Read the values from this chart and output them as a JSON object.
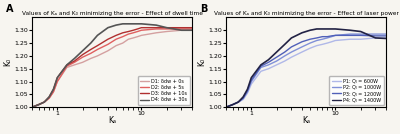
{
  "title_A": "Values of Kₐ and K₀ minimizing the error - Effect of dwell time",
  "title_B": "Values of Kₐ and K₀ minimizing the error - Effect of laser power",
  "xlabel": "Kₐ",
  "ylabel_A": "K₀",
  "ylabel_B": "K₀",
  "panel_A": "A",
  "panel_B": "B",
  "x_log": [
    0.5,
    0.6,
    0.7,
    0.8,
    0.9,
    1.0,
    1.3,
    1.6,
    2.0,
    2.5,
    3.0,
    4.0,
    5.0,
    6.0,
    7.0,
    8.0,
    9.0,
    10.0,
    15.0,
    20.0,
    30.0,
    40.0
  ],
  "legend_A": [
    "D1: δdw + 0s",
    "D2: δdw + 5s",
    "D3: δdw + 10s",
    "D4: δdw + 30s"
  ],
  "legend_B": [
    "P1: Qₗ = 600W",
    "P2: Qₗ = 1000W",
    "P3: Qₗ = 1200W",
    "P4: Qₗ = 1400W"
  ],
  "colors_A": [
    "#d4a0a0",
    "#e06060",
    "#b03030",
    "#555555"
  ],
  "colors_B": [
    "#b0b8e8",
    "#8090d8",
    "#5060b8",
    "#222244"
  ],
  "lw_A": [
    1.0,
    1.0,
    1.0,
    1.2
  ],
  "lw_B": [
    1.0,
    1.0,
    1.0,
    1.2
  ],
  "background": "#f7f5f0",
  "y_D1": [
    1.0,
    1.01,
    1.02,
    1.035,
    1.06,
    1.1,
    1.155,
    1.165,
    1.175,
    1.19,
    1.2,
    1.22,
    1.24,
    1.25,
    1.265,
    1.27,
    1.275,
    1.28,
    1.29,
    1.295,
    1.3,
    1.3
  ],
  "y_D2": [
    1.0,
    1.01,
    1.02,
    1.035,
    1.06,
    1.1,
    1.16,
    1.175,
    1.195,
    1.21,
    1.225,
    1.245,
    1.265,
    1.275,
    1.285,
    1.29,
    1.295,
    1.3,
    1.305,
    1.305,
    1.305,
    1.305
  ],
  "y_D3": [
    1.0,
    1.01,
    1.02,
    1.04,
    1.07,
    1.115,
    1.165,
    1.18,
    1.205,
    1.225,
    1.24,
    1.265,
    1.28,
    1.29,
    1.295,
    1.3,
    1.305,
    1.31,
    1.31,
    1.31,
    1.31,
    1.31
  ],
  "y_D4": [
    1.0,
    1.01,
    1.02,
    1.04,
    1.07,
    1.115,
    1.165,
    1.19,
    1.22,
    1.25,
    1.28,
    1.31,
    1.32,
    1.325,
    1.325,
    1.325,
    1.325,
    1.325,
    1.32,
    1.31,
    1.3,
    1.3
  ],
  "y_P1": [
    1.0,
    1.01,
    1.02,
    1.03,
    1.055,
    1.09,
    1.14,
    1.15,
    1.165,
    1.18,
    1.195,
    1.215,
    1.23,
    1.24,
    1.245,
    1.25,
    1.255,
    1.26,
    1.265,
    1.265,
    1.27,
    1.27
  ],
  "y_P2": [
    1.0,
    1.01,
    1.02,
    1.035,
    1.06,
    1.1,
    1.155,
    1.165,
    1.18,
    1.2,
    1.215,
    1.235,
    1.25,
    1.26,
    1.265,
    1.27,
    1.275,
    1.28,
    1.285,
    1.285,
    1.285,
    1.285
  ],
  "y_P3": [
    1.0,
    1.01,
    1.02,
    1.035,
    1.065,
    1.105,
    1.16,
    1.175,
    1.195,
    1.215,
    1.235,
    1.255,
    1.265,
    1.27,
    1.275,
    1.275,
    1.278,
    1.28,
    1.28,
    1.28,
    1.278,
    1.278
  ],
  "y_P4": [
    1.0,
    1.01,
    1.02,
    1.04,
    1.07,
    1.115,
    1.165,
    1.185,
    1.215,
    1.245,
    1.27,
    1.29,
    1.3,
    1.305,
    1.305,
    1.305,
    1.305,
    1.305,
    1.3,
    1.295,
    1.27,
    1.268
  ]
}
